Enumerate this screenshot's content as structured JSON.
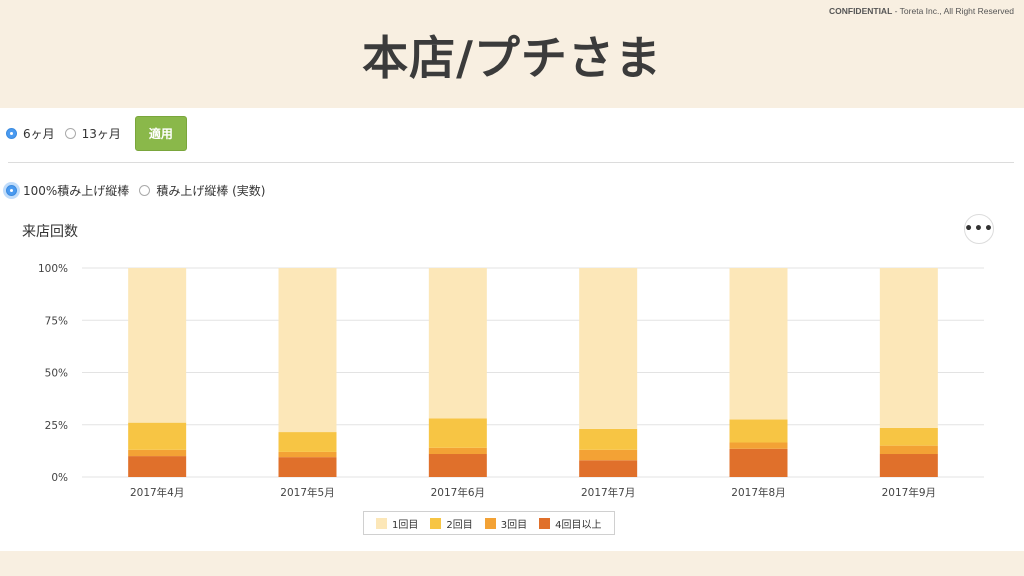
{
  "header": {
    "confidential_label": "CONFIDENTIAL",
    "confidential_suffix": " - Toreta Inc., All Right Reserved",
    "title": "本店/プチさま"
  },
  "period_options": [
    {
      "label": "6ヶ月",
      "selected": true
    },
    {
      "label": "13ヶ月",
      "selected": false
    }
  ],
  "apply_label": "適用",
  "chart_mode_options": [
    {
      "label": "100%積み上げ縦棒",
      "selected": true
    },
    {
      "label": "積み上げ縦棒 (実数)",
      "selected": false
    }
  ],
  "menu_icon": "more-horizontal-icon",
  "colors": {
    "series": [
      "#fce7b8",
      "#f7c544",
      "#f3a235",
      "#e0702b"
    ],
    "grid": "#e3e3e3"
  },
  "chart_data": {
    "type": "bar",
    "stacked": "percent",
    "title": "来店回数",
    "categories": [
      "2017年4月",
      "2017年5月",
      "2017年6月",
      "2017年7月",
      "2017年8月",
      "2017年9月"
    ],
    "series": [
      {
        "name": "4回目以上",
        "values": [
          10,
          9.5,
          11,
          8,
          13.5,
          11
        ]
      },
      {
        "name": "3回目",
        "values": [
          3,
          2.5,
          3,
          5,
          3,
          4
        ]
      },
      {
        "name": "2回目",
        "values": [
          13,
          9.5,
          14,
          10,
          11,
          8.5
        ]
      },
      {
        "name": "1回目",
        "values": [
          74,
          78.5,
          72,
          77,
          72.5,
          76.5
        ]
      }
    ],
    "legend_order": [
      "1回目",
      "2回目",
      "3回目",
      "4回目以上"
    ],
    "ylim": [
      0,
      100
    ],
    "yticks": [
      "0%",
      "25%",
      "50%",
      "75%",
      "100%"
    ],
    "grid": true,
    "legend_position": "bottom"
  }
}
